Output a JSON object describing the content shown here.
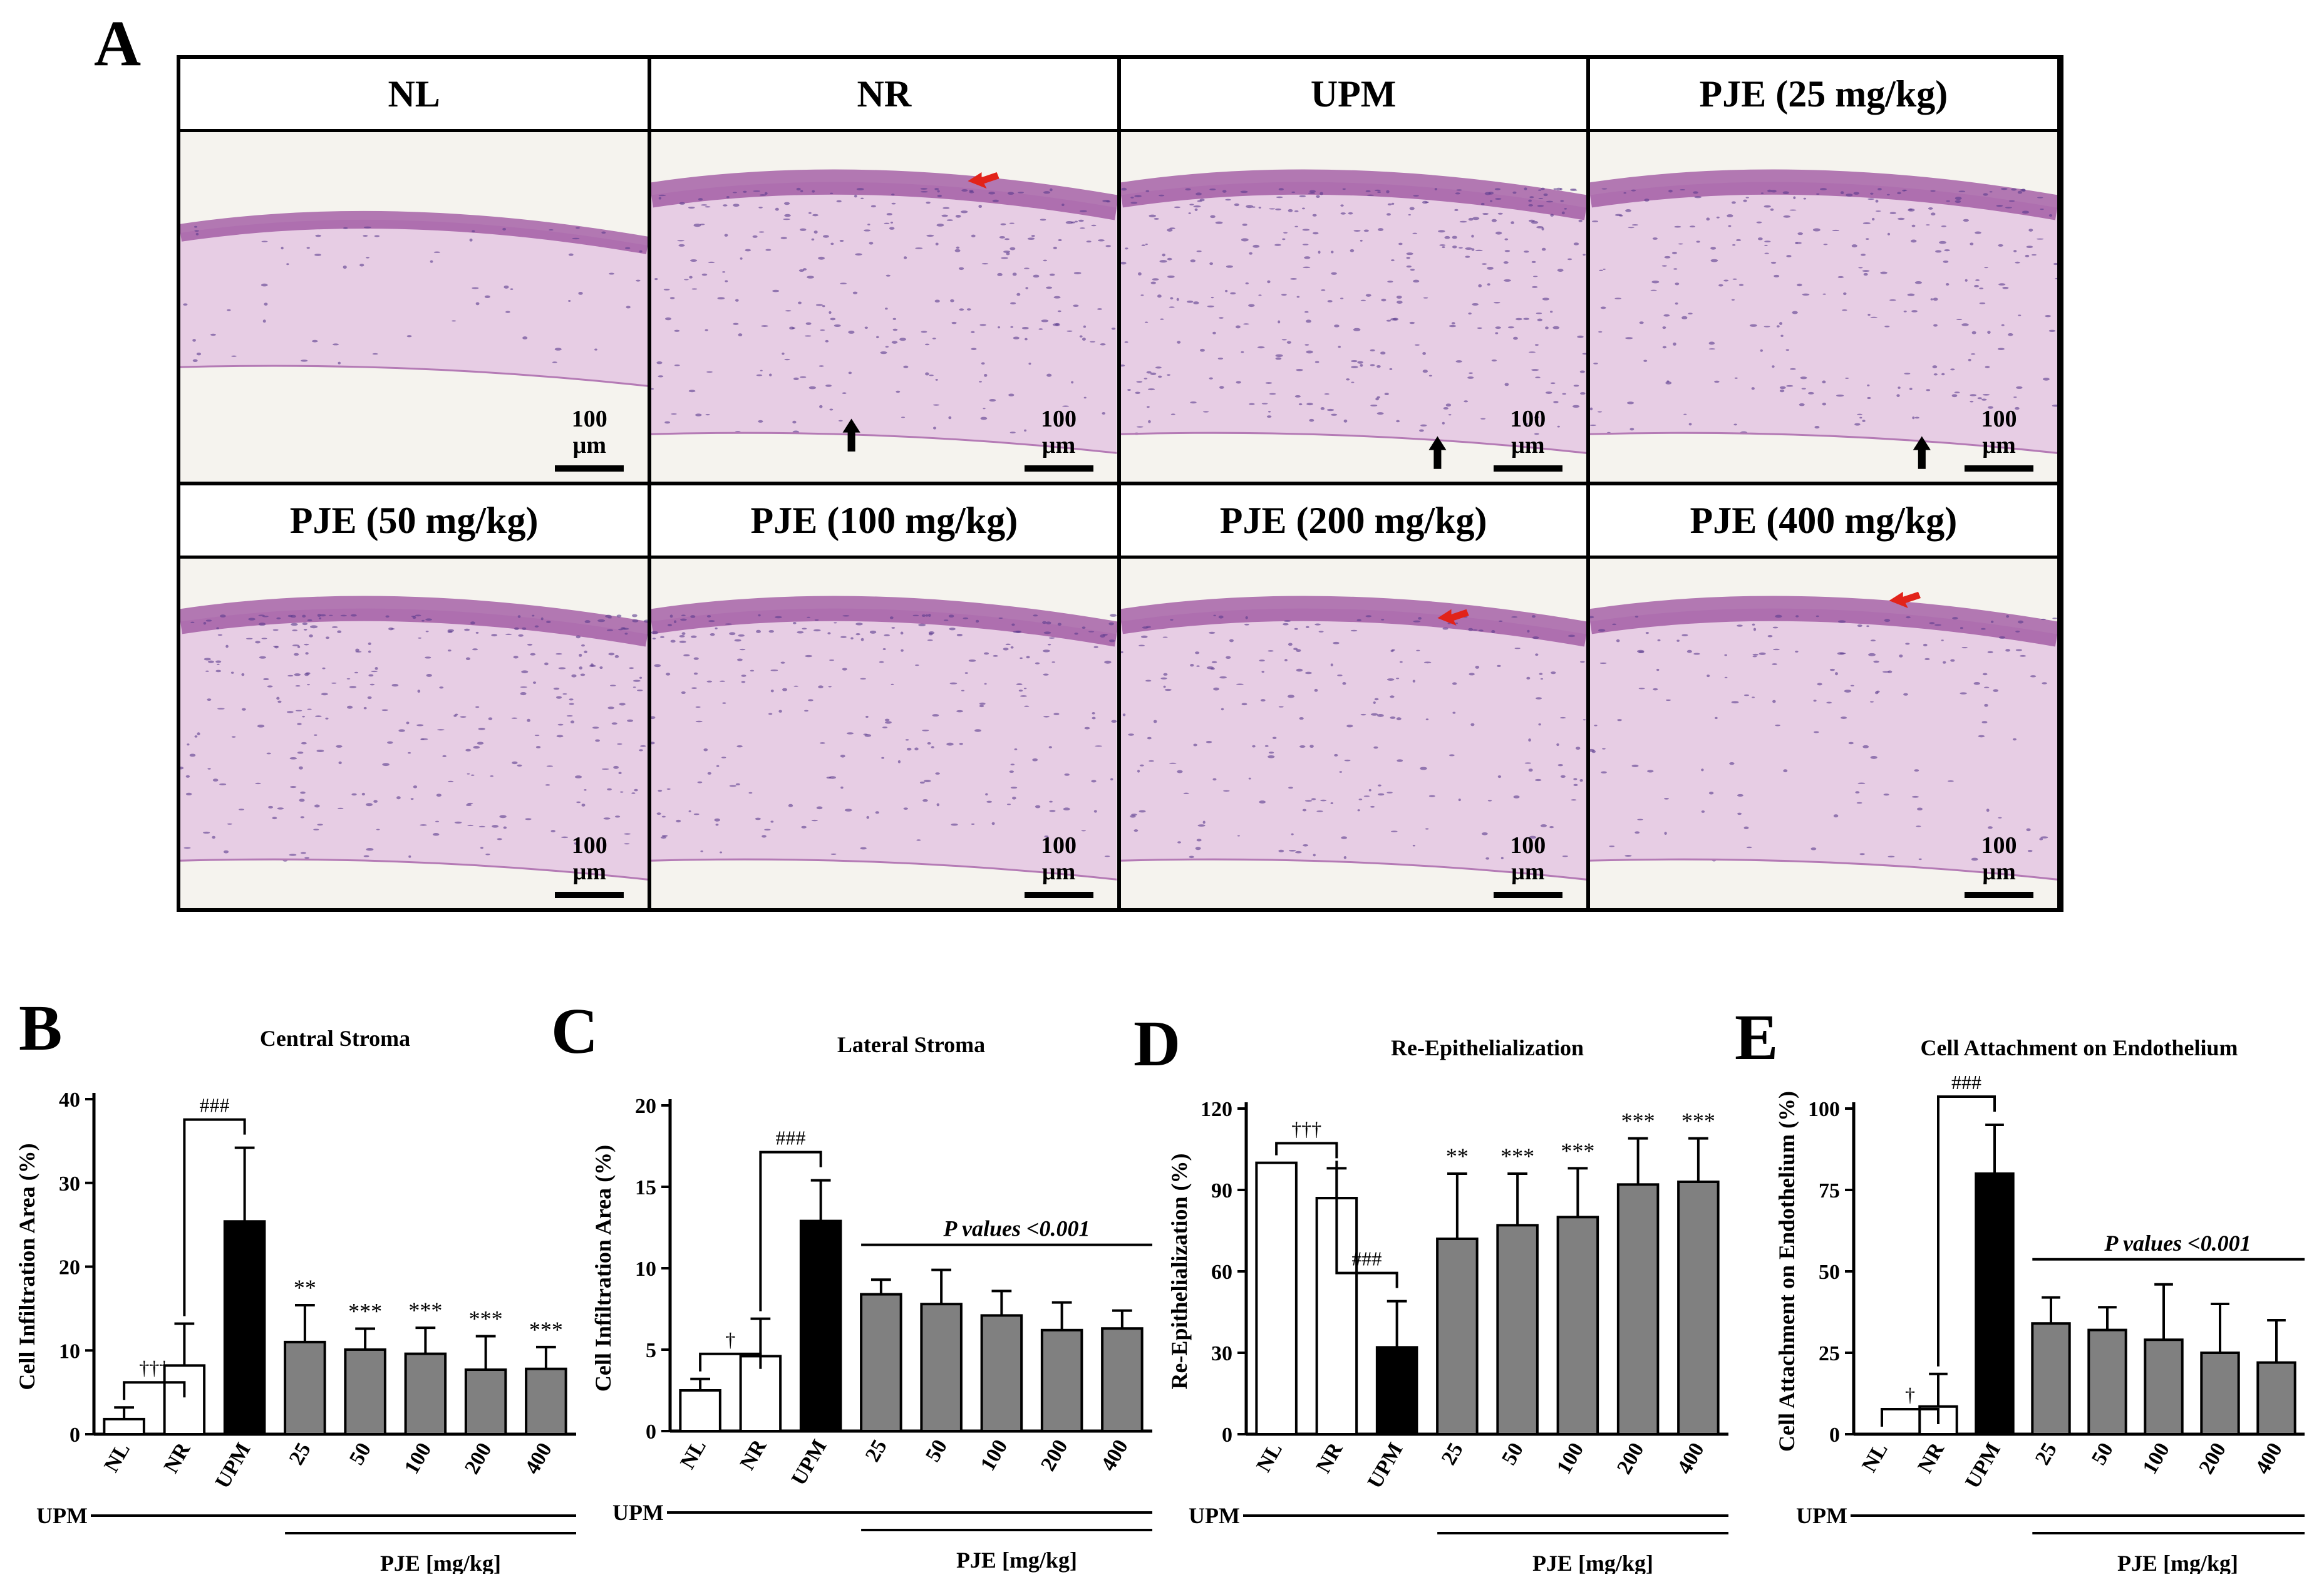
{
  "panel_letters": {
    "a": "A",
    "b": "B",
    "c": "C",
    "d": "D",
    "e": "E"
  },
  "micrographs": [
    {
      "label": "NL",
      "scale": "100 µm",
      "arrows": []
    },
    {
      "label": "NR",
      "scale": "100 µm",
      "arrows": [
        "red",
        "black"
      ]
    },
    {
      "label": "UPM",
      "scale": "100 µm",
      "arrows": [
        "black"
      ]
    },
    {
      "label": "PJE (25 mg/kg)",
      "scale": "100 µm",
      "arrows": [
        "black"
      ]
    },
    {
      "label": "PJE (50 mg/kg)",
      "scale": "100 µm",
      "arrows": []
    },
    {
      "label": "PJE (100 mg/kg)",
      "scale": "100 µm",
      "arrows": []
    },
    {
      "label": "PJE (200 mg/kg)",
      "scale": "100 µm",
      "arrows": [
        "red"
      ]
    },
    {
      "label": "PJE (400 mg/kg)",
      "scale": "100 µm",
      "arrows": [
        "red"
      ]
    }
  ],
  "colors": {
    "tissue": "#d8a0d6",
    "nuclei": "#5a3a8e",
    "epithelium": "#9b4f9d",
    "background": "#f5f3ee",
    "red_arrow": "#e2231a",
    "bar_open": "#ffffff",
    "bar_black": "#000000",
    "bar_gray": "#808080"
  },
  "chart_data": [
    {
      "id": "B",
      "type": "bar",
      "title": "Central Stroma",
      "ylabel": "Cell Infiltration Area (%)",
      "ylim": [
        0,
        40
      ],
      "yticks": [
        "0",
        "10",
        "20",
        "30",
        "40"
      ],
      "categories": [
        "NL",
        "NR",
        "UPM",
        "25",
        "50",
        "100",
        "200",
        "400"
      ],
      "values": [
        1.8,
        8.2,
        25.4,
        11.0,
        10.1,
        9.6,
        7.7,
        7.8
      ],
      "errors": [
        1.4,
        5.0,
        8.8,
        4.4,
        2.5,
        3.1,
        4.0,
        2.6
      ],
      "fills": [
        "white",
        "white",
        "black",
        "gray",
        "gray",
        "gray",
        "gray",
        "gray"
      ],
      "sig": [
        "",
        "",
        "",
        "**",
        "***",
        "***",
        "***",
        "***"
      ],
      "brackets": [
        {
          "from": 0,
          "to": 1,
          "label": "†††"
        },
        {
          "from": 1,
          "to": 2,
          "label": "###"
        }
      ],
      "group_label": "UPM",
      "pje_label": "PJE  [mg/kg]",
      "pvalue": ""
    },
    {
      "id": "C",
      "type": "bar",
      "title": "Lateral Stroma",
      "ylabel": "Cell Infiltration Area (%)",
      "ylim": [
        0,
        20
      ],
      "yticks": [
        "0",
        "5",
        "10",
        "15",
        "20"
      ],
      "categories": [
        "NL",
        "NR",
        "UPM",
        "25",
        "50",
        "100",
        "200",
        "400"
      ],
      "values": [
        2.5,
        4.6,
        12.9,
        8.4,
        7.8,
        7.1,
        6.2,
        6.3
      ],
      "errors": [
        0.7,
        2.3,
        2.5,
        0.9,
        2.1,
        1.5,
        1.7,
        1.1
      ],
      "fills": [
        "white",
        "white",
        "black",
        "gray",
        "gray",
        "gray",
        "gray",
        "gray"
      ],
      "sig": [
        "",
        "",
        "",
        "",
        "",
        "",
        "",
        ""
      ],
      "brackets": [
        {
          "from": 0,
          "to": 1,
          "label": "†"
        },
        {
          "from": 1,
          "to": 2,
          "label": "###"
        }
      ],
      "group_label": "UPM",
      "pje_label": "PJE  [mg/kg]",
      "pvalue": "P values <0.001"
    },
    {
      "id": "D",
      "type": "bar",
      "title": "Re-Epithelialization",
      "ylabel": "Re-Epithelialization (%)",
      "ylim": [
        0,
        120
      ],
      "yticks": [
        "0",
        "30",
        "60",
        "90",
        "120"
      ],
      "categories": [
        "NL",
        "NR",
        "UPM",
        "25",
        "50",
        "100",
        "200",
        "400"
      ],
      "values": [
        100,
        87,
        32,
        72,
        77,
        80,
        92,
        93
      ],
      "errors": [
        0,
        11,
        17,
        24,
        19,
        18,
        17,
        16
      ],
      "fills": [
        "white",
        "white",
        "black",
        "gray",
        "gray",
        "gray",
        "gray",
        "gray"
      ],
      "sig": [
        "",
        "",
        "",
        "**",
        "***",
        "***",
        "***",
        "***"
      ],
      "brackets": [
        {
          "from": 0,
          "to": 1,
          "label": "†††"
        },
        {
          "from": 1,
          "to": 2,
          "label": "###"
        }
      ],
      "group_label": "UPM",
      "pje_label": "PJE  [mg/kg]",
      "pvalue": ""
    },
    {
      "id": "E",
      "type": "bar",
      "title": "Cell Attachment on Endothelium",
      "ylabel": "Cell Attachment on Endothelium (%)",
      "ylim": [
        0,
        100
      ],
      "yticks": [
        "0",
        "25",
        "50",
        "75",
        "100"
      ],
      "categories": [
        "NL",
        "NR",
        "UPM",
        "25",
        "50",
        "100",
        "200",
        "400"
      ],
      "values": [
        0,
        8.5,
        80,
        34,
        32,
        29,
        25,
        22
      ],
      "errors": [
        0,
        10,
        15,
        8,
        7,
        17,
        15,
        13
      ],
      "fills": [
        "white",
        "white",
        "black",
        "gray",
        "gray",
        "gray",
        "gray",
        "gray"
      ],
      "sig": [
        "",
        "",
        "",
        "",
        "",
        "",
        "",
        ""
      ],
      "brackets": [
        {
          "from": 0,
          "to": 1,
          "label": "†"
        },
        {
          "from": 1,
          "to": 2,
          "label": "###"
        }
      ],
      "group_label": "UPM",
      "pje_label": "PJE  [mg/kg]",
      "pvalue": "P values <0.001"
    }
  ]
}
